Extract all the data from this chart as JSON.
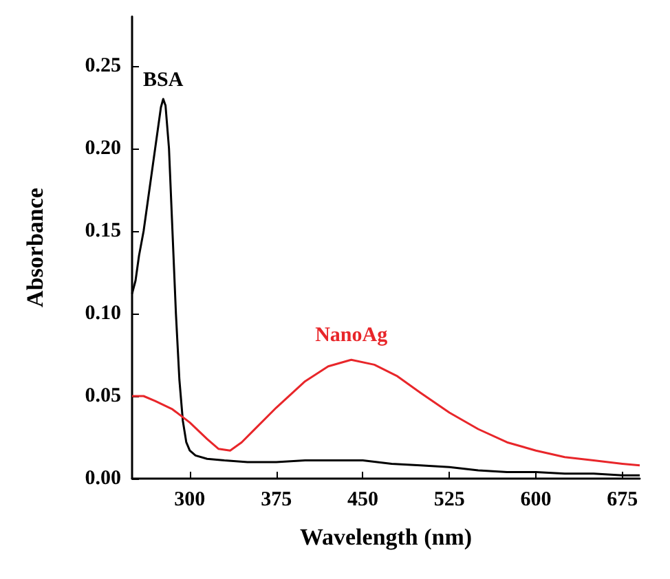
{
  "chart_data": {
    "type": "line",
    "xlabel": "Wavelength (nm)",
    "ylabel": "Absorbance",
    "xlim": [
      250,
      690
    ],
    "xticks": [
      300,
      375,
      450,
      525,
      600,
      675
    ],
    "ylim": [
      0,
      0.28
    ],
    "yticks": [
      {
        "value": 0,
        "label": "0.00"
      },
      0.05,
      {
        "value": 0.1,
        "label": "0.10"
      },
      0.15,
      {
        "value": 0.2,
        "label": "0.20"
      },
      0.25
    ],
    "series": [
      {
        "name": "BSA",
        "color": "#000000",
        "x": [
          250,
          253,
          256,
          260,
          264,
          268,
          272,
          275,
          277,
          279,
          282,
          285,
          288,
          291,
          294,
          297,
          300,
          305,
          315,
          330,
          350,
          375,
          400,
          425,
          450,
          475,
          500,
          525,
          550,
          575,
          600,
          625,
          650,
          675,
          690
        ],
        "values": [
          0.112,
          0.12,
          0.135,
          0.15,
          0.17,
          0.19,
          0.21,
          0.225,
          0.23,
          0.226,
          0.2,
          0.15,
          0.1,
          0.06,
          0.035,
          0.022,
          0.017,
          0.014,
          0.012,
          0.011,
          0.01,
          0.01,
          0.011,
          0.011,
          0.011,
          0.009,
          0.008,
          0.007,
          0.005,
          0.004,
          0.004,
          0.003,
          0.003,
          0.002,
          0.002
        ]
      },
      {
        "name": "NanoAg",
        "color": "#e8262a",
        "x": [
          250,
          260,
          270,
          285,
          300,
          315,
          325,
          335,
          345,
          355,
          375,
          400,
          420,
          440,
          460,
          480,
          500,
          525,
          550,
          575,
          600,
          625,
          650,
          675,
          690
        ],
        "values": [
          0.05,
          0.05,
          0.047,
          0.042,
          0.034,
          0.024,
          0.018,
          0.017,
          0.022,
          0.029,
          0.043,
          0.059,
          0.068,
          0.072,
          0.069,
          0.062,
          0.052,
          0.04,
          0.03,
          0.022,
          0.017,
          0.013,
          0.011,
          0.009,
          0.008
        ]
      }
    ],
    "grid": false,
    "legend": false,
    "marker": "none",
    "line_style": "solid"
  }
}
